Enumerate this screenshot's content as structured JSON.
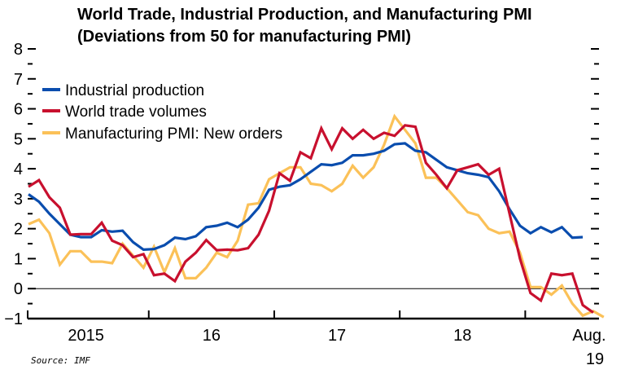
{
  "chart_data": {
    "type": "line",
    "title": "World Trade, Industrial Production, and Manufacturing PMI",
    "subtitle": "(Deviations from 50 for manufacturing PMI)",
    "xlabel": "",
    "ylabel": "",
    "ylim": [
      -1,
      8
    ],
    "yticks": [
      "8",
      "7",
      "6",
      "5",
      "4",
      "3",
      "2",
      "1",
      "0",
      "−1"
    ],
    "ytick_values": [
      8,
      7,
      6,
      5,
      4,
      3,
      2,
      1,
      0,
      -1
    ],
    "x_start": "Jan 2015",
    "x_end": "Aug 2019",
    "x_tick_labels": [
      "2015",
      "16",
      "17",
      "18"
    ],
    "x_last_label_line1": "Aug.",
    "x_last_label_line2": "19",
    "grid": false,
    "zero_line": true,
    "legend_position": "top-left",
    "series": [
      {
        "name": "Industrial production",
        "color": "#0A4DAE",
        "values": [
          3.15,
          2.9,
          2.5,
          2.15,
          1.8,
          1.72,
          1.72,
          1.95,
          1.9,
          1.93,
          1.55,
          1.3,
          1.32,
          1.45,
          1.7,
          1.65,
          1.75,
          2.05,
          2.1,
          2.2,
          2.05,
          2.3,
          2.7,
          3.3,
          3.4,
          3.45,
          3.65,
          3.9,
          4.15,
          4.12,
          4.2,
          4.45,
          4.45,
          4.5,
          4.6,
          4.82,
          4.85,
          4.6,
          4.55,
          4.3,
          4.05,
          3.95,
          3.85,
          3.8,
          3.72,
          3.25,
          2.65,
          2.1,
          1.85,
          2.05,
          1.88,
          2.05,
          1.7,
          1.72
        ]
      },
      {
        "name": "World trade volumes",
        "color": "#C8102E",
        "values": [
          3.4,
          3.62,
          3.05,
          2.7,
          1.8,
          1.82,
          1.82,
          2.2,
          1.6,
          1.45,
          1.05,
          1.15,
          0.45,
          0.5,
          0.25,
          0.9,
          1.2,
          1.62,
          1.28,
          1.3,
          1.28,
          1.35,
          1.8,
          2.6,
          3.85,
          3.6,
          4.55,
          4.35,
          5.35,
          4.65,
          5.35,
          5.0,
          5.3,
          5.0,
          5.2,
          5.1,
          5.45,
          5.4,
          4.2,
          3.8,
          3.35,
          3.95,
          4.05,
          4.15,
          3.8,
          4.0,
          2.5,
          1.0,
          -0.15,
          -0.4,
          0.5,
          0.45,
          0.5,
          -0.55,
          -0.8
        ]
      },
      {
        "name": "Manufacturing PMI: New orders",
        "color": "#FBC158",
        "values": [
          2.15,
          2.3,
          1.85,
          0.8,
          1.25,
          1.25,
          0.9,
          0.9,
          0.85,
          1.5,
          1.1,
          0.7,
          1.4,
          0.55,
          1.35,
          0.35,
          0.35,
          0.7,
          1.2,
          1.05,
          1.6,
          2.8,
          2.85,
          3.65,
          3.85,
          4.05,
          4.05,
          3.5,
          3.45,
          3.25,
          3.5,
          4.1,
          3.7,
          4.05,
          4.8,
          5.75,
          5.3,
          4.85,
          3.7,
          3.7,
          3.35,
          2.95,
          2.55,
          2.45,
          2.0,
          1.85,
          1.9,
          1.2,
          0.05,
          0.05,
          -0.2,
          0.1,
          -0.5,
          -0.9,
          -0.75,
          -0.95
        ]
      }
    ]
  },
  "source": "Source: IMF"
}
